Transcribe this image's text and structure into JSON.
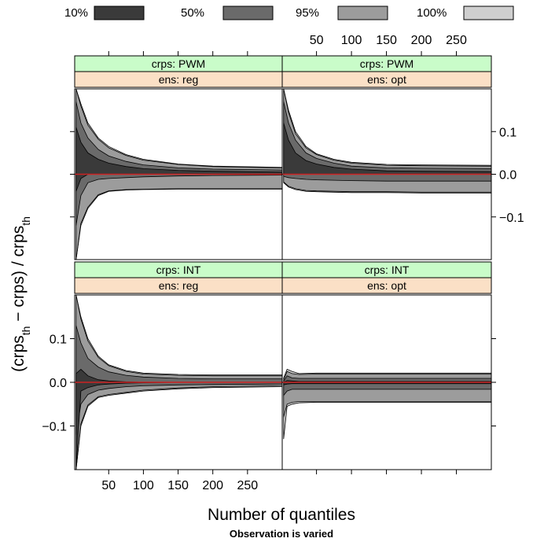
{
  "chart_data": {
    "type": "area",
    "title": "",
    "subtitle": "Observation is varied",
    "xlabel": "Number of quantiles",
    "ylabel": {
      "parts": [
        "(crps",
        "th",
        " − crps) / crps",
        "th"
      ]
    },
    "xlim": [
      1,
      300
    ],
    "ylim": [
      -0.2,
      0.2
    ],
    "x_ticks": [
      50,
      100,
      150,
      200,
      250
    ],
    "x_tick_labels": [
      "50",
      "100",
      "150",
      "200",
      "250"
    ],
    "y_ticks": [
      -0.1,
      0.0,
      0.1
    ],
    "y_tick_labels": [
      "−0.1",
      "0.0",
      "0.1"
    ],
    "reference_line": {
      "y": 0,
      "color": "#cc2222"
    },
    "legend": {
      "placement": "top",
      "items": [
        {
          "label": "10%",
          "color": "#3a3a3a"
        },
        {
          "label": "50%",
          "color": "#6a6a6a"
        },
        {
          "label": "95%",
          "color": "#9c9c9c"
        },
        {
          "label": "100%",
          "color": "#cfcfcf"
        }
      ]
    },
    "strip_colors": {
      "crps": "#c9fcc9",
      "ens": "#fbe0c6"
    },
    "panels": [
      {
        "crps": "crps: PWM",
        "ens": "ens: reg",
        "bands": [
          {
            "level": "100%",
            "x": [
              3,
              10,
              20,
              35,
              50,
              75,
              100,
              150,
              200,
              300
            ],
            "upper": [
              0.2,
              0.165,
              0.12,
              0.085,
              0.065,
              0.046,
              0.035,
              0.024,
              0.019,
              0.016
            ],
            "lower": [
              -0.2,
              -0.12,
              -0.08,
              -0.05,
              -0.04,
              -0.037,
              -0.036,
              -0.035,
              -0.035,
              -0.035
            ]
          },
          {
            "level": "95%",
            "x": [
              3,
              10,
              20,
              35,
              50,
              75,
              100,
              150,
              200,
              300
            ],
            "upper": [
              0.2,
              0.16,
              0.115,
              0.082,
              0.062,
              0.044,
              0.033,
              0.023,
              0.018,
              0.015
            ],
            "lower": [
              -0.2,
              -0.115,
              -0.077,
              -0.048,
              -0.039,
              -0.036,
              -0.035,
              -0.034,
              -0.034,
              -0.034
            ]
          },
          {
            "level": "50%",
            "x": [
              3,
              10,
              20,
              35,
              50,
              75,
              100,
              150,
              200,
              300
            ],
            "upper": [
              0.17,
              0.12,
              0.085,
              0.058,
              0.043,
              0.03,
              0.022,
              0.015,
              0.012,
              0.01
            ],
            "lower": [
              -0.12,
              -0.05,
              -0.02,
              -0.012,
              -0.01,
              -0.008,
              -0.006,
              -0.004,
              -0.003,
              -0.002
            ]
          },
          {
            "level": "10%",
            "x": [
              3,
              10,
              20,
              35,
              50,
              75,
              100,
              150,
              200,
              300
            ],
            "upper": [
              0.11,
              0.075,
              0.05,
              0.035,
              0.026,
              0.018,
              0.013,
              0.009,
              0.007,
              0.005
            ],
            "lower": [
              -0.04,
              -0.01,
              0.0,
              0.0,
              0.0,
              0.0,
              0.0,
              0.0,
              0.0,
              0.0
            ]
          }
        ]
      },
      {
        "crps": "crps: PWM",
        "ens": "ens: opt",
        "bands": [
          {
            "level": "100%",
            "x": [
              3,
              10,
              20,
              35,
              50,
              75,
              100,
              150,
              200,
              300
            ],
            "upper": [
              0.2,
              0.15,
              0.1,
              0.065,
              0.048,
              0.035,
              0.028,
              0.023,
              0.022,
              0.021
            ],
            "lower": [
              -0.02,
              -0.03,
              -0.036,
              -0.04,
              -0.041,
              -0.042,
              -0.043,
              -0.043,
              -0.044,
              -0.044
            ]
          },
          {
            "level": "95%",
            "x": [
              3,
              10,
              20,
              35,
              50,
              75,
              100,
              150,
              200,
              300
            ],
            "upper": [
              0.2,
              0.145,
              0.095,
              0.062,
              0.046,
              0.033,
              0.026,
              0.021,
              0.02,
              0.019
            ],
            "lower": [
              -0.018,
              -0.028,
              -0.034,
              -0.038,
              -0.039,
              -0.04,
              -0.041,
              -0.041,
              -0.042,
              -0.042
            ]
          },
          {
            "level": "50%",
            "x": [
              3,
              10,
              20,
              35,
              50,
              75,
              100,
              150,
              200,
              300
            ],
            "upper": [
              0.17,
              0.12,
              0.08,
              0.05,
              0.037,
              0.026,
              0.019,
              0.015,
              0.014,
              0.013
            ],
            "lower": [
              -0.005,
              -0.008,
              -0.01,
              -0.012,
              -0.013,
              -0.014,
              -0.015,
              -0.016,
              -0.016,
              -0.016
            ]
          },
          {
            "level": "10%",
            "x": [
              3,
              10,
              20,
              35,
              50,
              75,
              100,
              150,
              200,
              300
            ],
            "upper": [
              0.12,
              0.08,
              0.05,
              0.032,
              0.024,
              0.016,
              0.012,
              0.008,
              0.007,
              0.006
            ],
            "lower": [
              0.0,
              0.0,
              0.0,
              0.0,
              0.0,
              0.0,
              0.0,
              0.0,
              0.0,
              0.0
            ]
          }
        ]
      },
      {
        "crps": "crps: INT",
        "ens": "ens: reg",
        "bands": [
          {
            "level": "100%",
            "x": [
              3,
              10,
              20,
              35,
              50,
              75,
              100,
              150,
              200,
              300
            ],
            "upper": [
              0.2,
              0.15,
              0.1,
              0.06,
              0.04,
              0.027,
              0.021,
              0.018,
              0.017,
              0.017
            ],
            "lower": [
              -0.2,
              -0.1,
              -0.055,
              -0.035,
              -0.03,
              -0.025,
              -0.02,
              -0.015,
              -0.012,
              -0.01
            ]
          },
          {
            "level": "95%",
            "x": [
              3,
              10,
              20,
              35,
              50,
              75,
              100,
              150,
              200,
              300
            ],
            "upper": [
              0.2,
              0.145,
              0.095,
              0.057,
              0.038,
              0.025,
              0.019,
              0.016,
              0.015,
              0.015
            ],
            "lower": [
              -0.2,
              -0.095,
              -0.052,
              -0.033,
              -0.028,
              -0.023,
              -0.018,
              -0.013,
              -0.01,
              -0.008
            ]
          },
          {
            "level": "50%",
            "x": [
              3,
              10,
              20,
              35,
              50,
              75,
              100,
              150,
              200,
              300
            ],
            "upper": [
              0.13,
              0.09,
              0.055,
              0.035,
              0.024,
              0.016,
              0.012,
              0.009,
              0.008,
              0.008
            ],
            "lower": [
              -0.12,
              -0.05,
              -0.028,
              -0.018,
              -0.014,
              -0.01,
              -0.008,
              -0.006,
              -0.005,
              -0.004
            ]
          },
          {
            "level": "10%",
            "x": [
              3,
              10,
              20,
              35,
              50,
              75,
              100,
              150,
              200,
              300
            ],
            "upper": [
              0.02,
              0.03,
              0.015,
              0.006,
              0.003,
              0.001,
              0.0,
              0.0,
              0.0,
              0.0
            ],
            "lower": [
              -0.2,
              -0.02,
              -0.012,
              -0.006,
              -0.004,
              -0.002,
              -0.001,
              0.0,
              0.0,
              0.0
            ]
          }
        ]
      },
      {
        "crps": "crps: INT",
        "ens": "ens: opt",
        "bands": [
          {
            "level": "100%",
            "x": [
              3,
              8,
              15,
              25,
              50,
              100,
              200,
              300
            ],
            "upper": [
              0.01,
              0.03,
              0.025,
              0.02,
              0.021,
              0.021,
              0.021,
              0.021
            ],
            "lower": [
              -0.13,
              -0.055,
              -0.05,
              -0.047,
              -0.046,
              -0.046,
              -0.046,
              -0.046
            ]
          },
          {
            "level": "95%",
            "x": [
              3,
              8,
              15,
              25,
              50,
              100,
              200,
              300
            ],
            "upper": [
              0.005,
              0.025,
              0.02,
              0.018,
              0.019,
              0.019,
              0.019,
              0.019
            ],
            "lower": [
              -0.08,
              -0.05,
              -0.046,
              -0.044,
              -0.044,
              -0.044,
              -0.044,
              -0.044
            ]
          },
          {
            "level": "50%",
            "x": [
              3,
              8,
              15,
              25,
              50,
              100,
              200,
              300
            ],
            "upper": [
              0.002,
              0.015,
              0.01,
              0.009,
              0.009,
              0.009,
              0.009,
              0.009
            ],
            "lower": [
              -0.03,
              -0.02,
              -0.016,
              -0.016,
              -0.016,
              -0.016,
              -0.016,
              -0.016
            ]
          },
          {
            "level": "10%",
            "x": [
              3,
              8,
              15,
              25,
              50,
              100,
              200,
              300
            ],
            "upper": [
              0.0,
              0.004,
              0.003,
              0.002,
              0.002,
              0.002,
              0.002,
              0.002
            ],
            "lower": [
              -0.006,
              -0.004,
              -0.003,
              -0.003,
              -0.003,
              -0.003,
              -0.003,
              -0.003
            ]
          }
        ]
      }
    ]
  }
}
